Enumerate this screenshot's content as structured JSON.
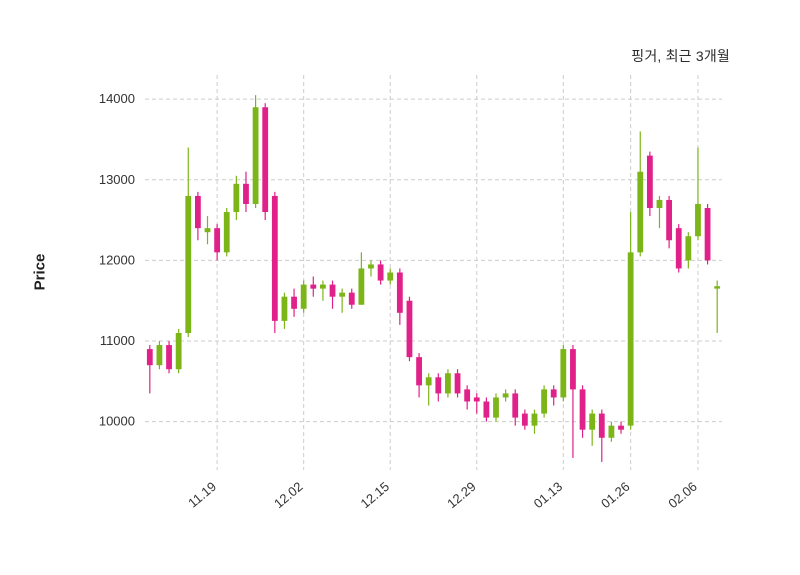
{
  "chart_data": {
    "type": "candlestick",
    "title": "핑거, 최근 3개월",
    "ylabel": "Price",
    "yticks": [
      10000,
      11000,
      12000,
      13000,
      14000
    ],
    "ylim": [
      9400,
      14300
    ],
    "grid": "dashed",
    "legend": "none",
    "colors": {
      "up": "#7cb518",
      "down": "#e0218a",
      "grid": "#cccccc",
      "tick_text": "#333333"
    },
    "xticks": [
      {
        "label": "11.19",
        "index": 7
      },
      {
        "label": "12.02",
        "index": 16
      },
      {
        "label": "12.15",
        "index": 25
      },
      {
        "label": "12.29",
        "index": 34
      },
      {
        "label": "01.13",
        "index": 43
      },
      {
        "label": "01.26",
        "index": 50
      },
      {
        "label": "02.06",
        "index": 57
      }
    ],
    "candles_format": [
      "open",
      "high",
      "low",
      "close"
    ],
    "candles": [
      [
        10900,
        10950,
        10350,
        10700
      ],
      [
        10700,
        11000,
        10650,
        10950
      ],
      [
        10950,
        11000,
        10600,
        10650
      ],
      [
        10650,
        11150,
        10600,
        11100
      ],
      [
        11100,
        13400,
        11050,
        12800
      ],
      [
        12800,
        12850,
        12250,
        12400
      ],
      [
        12350,
        12550,
        12200,
        12400
      ],
      [
        12400,
        12450,
        12000,
        12100
      ],
      [
        12100,
        12650,
        12050,
        12600
      ],
      [
        12600,
        13050,
        12500,
        12950
      ],
      [
        12950,
        13100,
        12600,
        12700
      ],
      [
        12700,
        14050,
        12650,
        13900
      ],
      [
        13900,
        13950,
        12500,
        12600
      ],
      [
        12800,
        12850,
        11100,
        11250
      ],
      [
        11250,
        11600,
        11150,
        11550
      ],
      [
        11550,
        11650,
        11300,
        11400
      ],
      [
        11400,
        11750,
        11350,
        11700
      ],
      [
        11700,
        11800,
        11550,
        11650
      ],
      [
        11650,
        11750,
        11500,
        11700
      ],
      [
        11700,
        11750,
        11400,
        11550
      ],
      [
        11550,
        11650,
        11350,
        11600
      ],
      [
        11600,
        11650,
        11400,
        11450
      ],
      [
        11450,
        12100,
        11450,
        11900
      ],
      [
        11900,
        12000,
        11800,
        11950
      ],
      [
        11950,
        12000,
        11700,
        11750
      ],
      [
        11750,
        11900,
        11700,
        11850
      ],
      [
        11850,
        11900,
        11200,
        11350
      ],
      [
        11500,
        11550,
        10750,
        10800
      ],
      [
        10800,
        10850,
        10300,
        10450
      ],
      [
        10450,
        10600,
        10200,
        10550
      ],
      [
        10550,
        10600,
        10250,
        10350
      ],
      [
        10350,
        10650,
        10300,
        10600
      ],
      [
        10600,
        10650,
        10300,
        10350
      ],
      [
        10400,
        10450,
        10150,
        10250
      ],
      [
        10300,
        10350,
        10100,
        10250
      ],
      [
        10250,
        10300,
        10000,
        10050
      ],
      [
        10050,
        10350,
        10000,
        10300
      ],
      [
        10300,
        10400,
        10250,
        10350
      ],
      [
        10350,
        10400,
        9950,
        10050
      ],
      [
        10100,
        10150,
        9900,
        9950
      ],
      [
        9950,
        10150,
        9850,
        10100
      ],
      [
        10100,
        10450,
        10050,
        10400
      ],
      [
        10400,
        10450,
        10200,
        10300
      ],
      [
        10300,
        10950,
        10250,
        10900
      ],
      [
        10900,
        10950,
        9550,
        10400
      ],
      [
        10400,
        10450,
        9800,
        9900
      ],
      [
        9900,
        10150,
        9700,
        10100
      ],
      [
        10100,
        10150,
        9500,
        9800
      ],
      [
        9800,
        10000,
        9750,
        9950
      ],
      [
        9950,
        10000,
        9850,
        9900
      ],
      [
        9950,
        12600,
        9900,
        12100
      ],
      [
        12100,
        13600,
        12050,
        13100
      ],
      [
        13300,
        13350,
        12550,
        12650
      ],
      [
        12650,
        12800,
        12400,
        12750
      ],
      [
        12750,
        12800,
        12150,
        12250
      ],
      [
        12400,
        12450,
        11850,
        11900
      ],
      [
        12000,
        12350,
        11900,
        12300
      ],
      [
        12300,
        13400,
        12250,
        12700
      ],
      [
        12650,
        12700,
        11950,
        12000
      ],
      [
        11650,
        11750,
        11100,
        11680
      ]
    ]
  }
}
